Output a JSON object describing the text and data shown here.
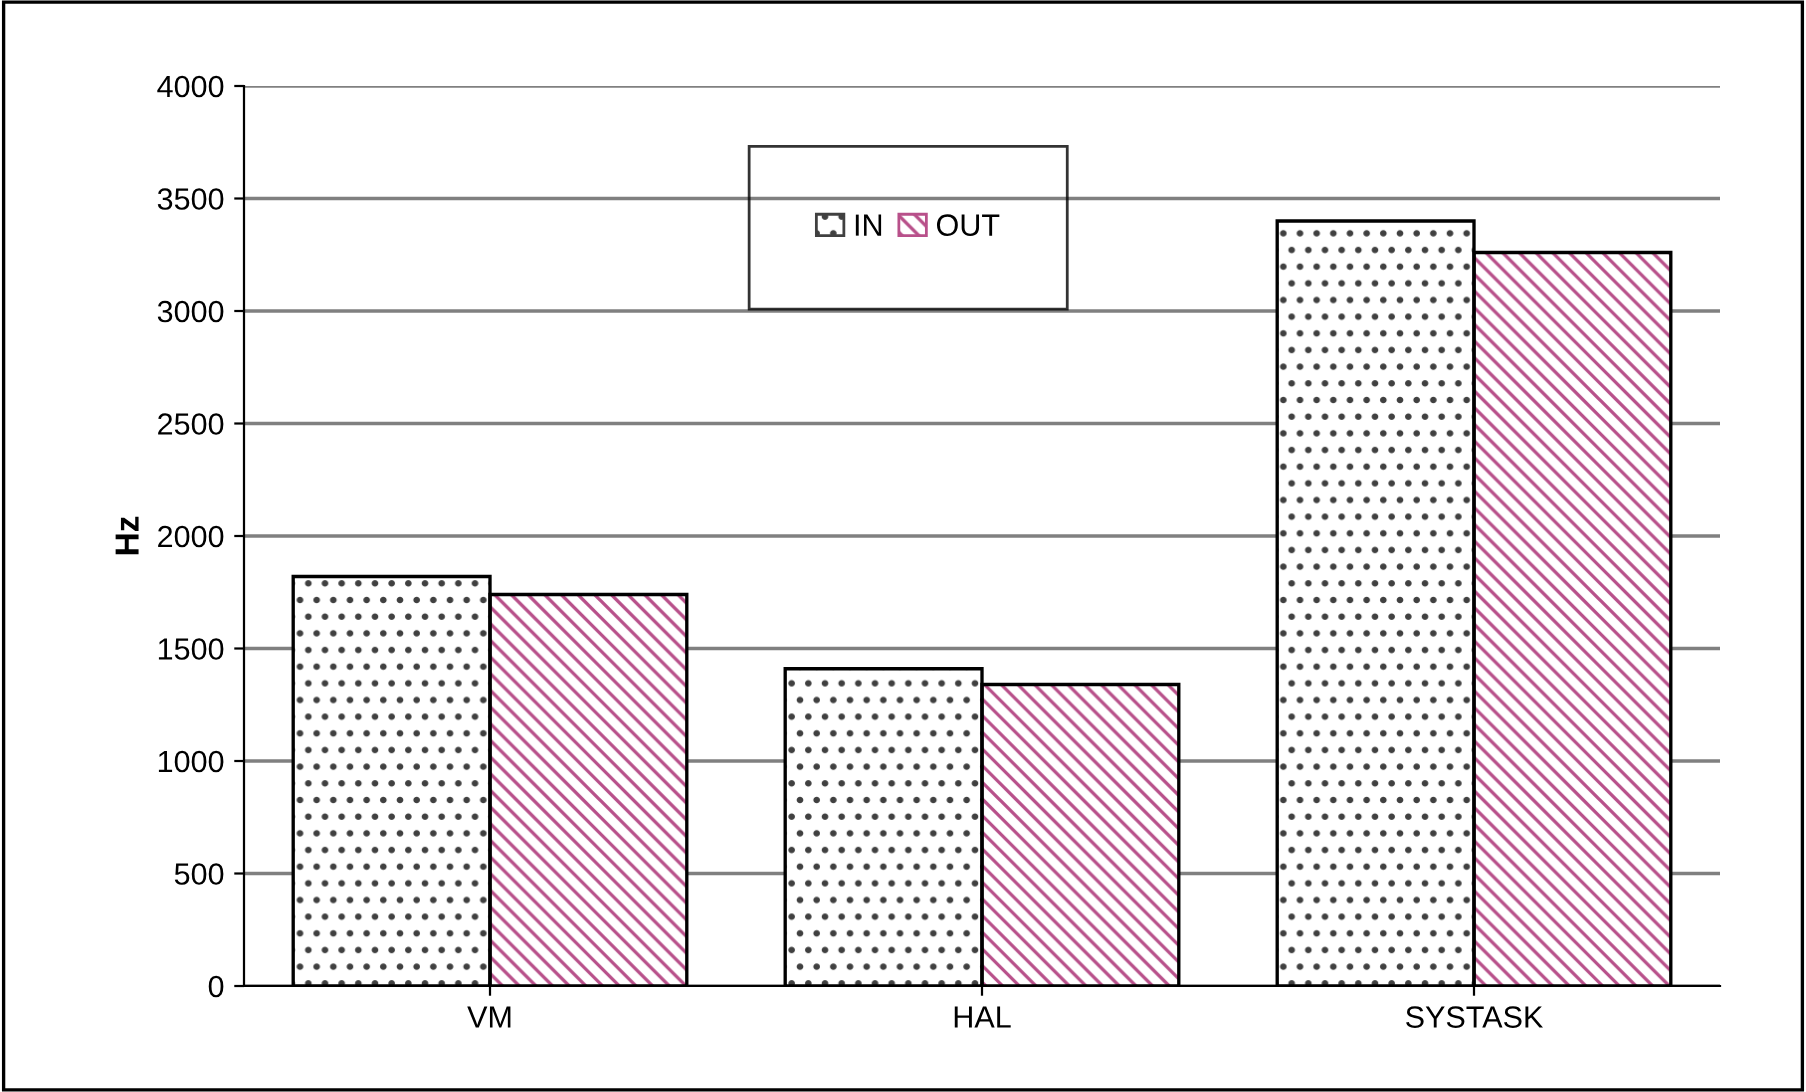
{
  "chart_data": {
    "type": "bar",
    "ylabel": "Hz",
    "categories": [
      "VM",
      "HAL",
      "SYSTASK"
    ],
    "series": [
      {
        "name": "IN",
        "color": "#404040",
        "values": [
          1820,
          1410,
          3400
        ]
      },
      {
        "name": "OUT",
        "color": "#b8508a",
        "values": [
          1740,
          1340,
          3260
        ]
      }
    ],
    "ylim": [
      0,
      4000
    ],
    "yticks": [
      0,
      500,
      1000,
      1500,
      2000,
      2500,
      3000,
      3500,
      4000
    ],
    "grid": "y",
    "legend": "top"
  }
}
